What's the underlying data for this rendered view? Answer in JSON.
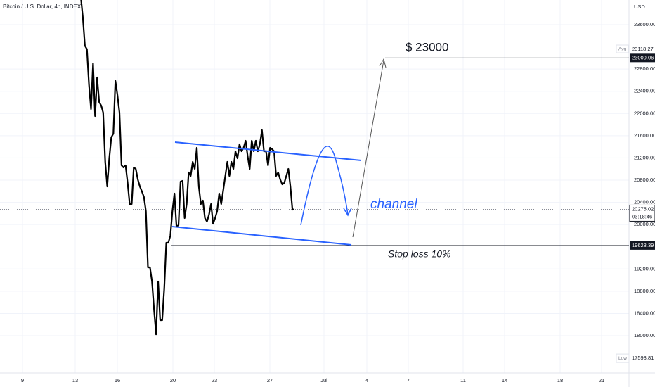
{
  "chart_data": {
    "type": "line",
    "title": "Bitcoin / U.S. Dollar, 4h, INDEX",
    "currency": "USD",
    "color": "#000000",
    "values": [
      24100,
      23727,
      23220,
      23157,
      22523,
      22080,
      22903,
      21953,
      22650,
      22206,
      22143,
      22016,
      21129,
      20686,
      21193,
      21573,
      21636,
      22587,
      22333,
      22016,
      21066,
      21028,
      21066,
      20749,
      20369,
      20369,
      21028,
      21003,
      20813,
      20686,
      20597,
      20496,
      20243,
      19229,
      19229,
      18976,
      18469,
      18025,
      18976,
      18279,
      18279,
      18849,
      19672,
      19672,
      19799,
      20243,
      20559,
      19964,
      19989,
      20775,
      20787,
      20116,
      20369,
      20939,
      20876,
      21129,
      21003,
      21383,
      20686,
      20369,
      20433,
      20116,
      20053,
      20179,
      20369,
      20015,
      20116,
      20243,
      20559,
      20369,
      20623,
      20876,
      21129,
      20876,
      21129,
      21003,
      21320,
      21193,
      21446,
      21320,
      21383,
      21510,
      21231,
      21003,
      21510,
      21320,
      21510,
      21320,
      21446,
      21700,
      21320,
      21320,
      21066,
      21383,
      21358,
      21320,
      20876,
      20939,
      20813,
      20724,
      20749,
      20876,
      21003,
      20686,
      20268,
      20275
    ],
    "ylim": [
      17329,
      24043
    ],
    "yticks": [
      {
        "value": 18000,
        "label": "18000.00"
      },
      {
        "value": 18400,
        "label": "18400.00"
      },
      {
        "value": 18800,
        "label": "18800.00"
      },
      {
        "value": 19200,
        "label": "19200.00"
      },
      {
        "value": 20000,
        "label": "20000.00"
      },
      {
        "value": 20400,
        "label": "20400.00"
      },
      {
        "value": 20800,
        "label": "20800.00"
      },
      {
        "value": 21200,
        "label": "21200.00"
      },
      {
        "value": 21600,
        "label": "21600.00"
      },
      {
        "value": 22000,
        "label": "22000.00"
      },
      {
        "value": 22400,
        "label": "22400.00"
      },
      {
        "value": 22800,
        "label": "22800.00"
      },
      {
        "value": 23600,
        "label": "23600.00"
      }
    ],
    "xtick_labels": [
      "9",
      "13",
      "16",
      "20",
      "23",
      "27",
      "Jul",
      "4",
      "7",
      "11",
      "14",
      "18",
      "21"
    ],
    "annotations": {
      "target": "$ 23000",
      "channel": "channel",
      "stop": "Stop loss 10%"
    },
    "levels": {
      "avg": {
        "tag": "Avg",
        "value": 23118.27
      },
      "target": 23000.06,
      "last": 20275.02,
      "countdown": "03:18:46",
      "stop": 19623.39,
      "low": {
        "tag": "Low",
        "value": 17593.81
      }
    }
  }
}
